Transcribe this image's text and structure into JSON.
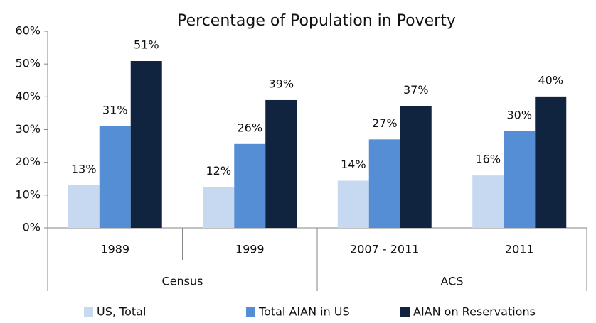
{
  "chart_data": {
    "type": "bar",
    "title": "Percentage of Population in Poverty",
    "categories": [
      "1989",
      "1999",
      "2007 - 2011",
      "2011"
    ],
    "groups": [
      "Census",
      "ACS"
    ],
    "series": [
      {
        "name": "US, Total",
        "color": "#c6d9f1",
        "values": [
          13,
          12.5,
          14.4,
          16
        ],
        "value_labels": [
          "13%",
          "12%",
          "14%",
          "16%"
        ]
      },
      {
        "name": "Total AIAN  in US",
        "color": "#558ed5",
        "values": [
          31,
          25.6,
          27,
          29.5
        ],
        "value_labels": [
          "31%",
          "26%",
          "27%",
          "30%"
        ]
      },
      {
        "name": "AIAN on Reservations",
        "color": "#10243f",
        "values": [
          50.9,
          39,
          37.2,
          40.1
        ],
        "value_labels": [
          "51%",
          "39%",
          "37%",
          "40%"
        ]
      }
    ],
    "ylim": [
      0,
      60
    ],
    "yticks": [
      {
        "value": 0,
        "label": "0%"
      },
      {
        "value": 10,
        "label": "10%"
      },
      {
        "value": 20,
        "label": "20%"
      },
      {
        "value": 30,
        "label": "30%"
      },
      {
        "value": 40,
        "label": "40%"
      },
      {
        "value": 50,
        "label": "50%"
      },
      {
        "value": 60,
        "label": "60%"
      }
    ],
    "legend": "bottom"
  }
}
